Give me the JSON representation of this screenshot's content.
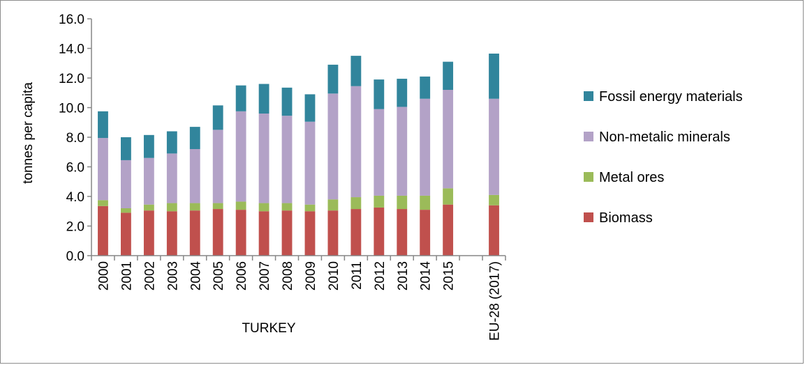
{
  "chart_data": {
    "type": "bar",
    "stacked": true,
    "ylabel": "tonnes per capita",
    "group_label": "TURKEY",
    "ylim": [
      0,
      16
    ],
    "ytick_step": 2,
    "ytick_labels": [
      "0.0",
      "2.0",
      "4.0",
      "6.0",
      "8.0",
      "10.0",
      "12.0",
      "14.0",
      "16.0"
    ],
    "grid": false,
    "legend_position": "right",
    "categories": [
      "2000",
      "2001",
      "2002",
      "2003",
      "2004",
      "2005",
      "2006",
      "2007",
      "2008",
      "2009",
      "2010",
      "2011",
      "2012",
      "2013",
      "2014",
      "2015",
      "",
      "EU-28 (2017)"
    ],
    "series": [
      {
        "name": "Biomass",
        "color": "#C0504D",
        "values": [
          3.35,
          2.9,
          3.05,
          3.0,
          3.05,
          3.15,
          3.1,
          3.0,
          3.05,
          3.0,
          3.05,
          3.15,
          3.25,
          3.15,
          3.1,
          3.45,
          null,
          3.4
        ]
      },
      {
        "name": "Metal ores",
        "color": "#9BBB59",
        "values": [
          0.4,
          0.3,
          0.4,
          0.55,
          0.5,
          0.4,
          0.55,
          0.55,
          0.5,
          0.45,
          0.75,
          0.8,
          0.8,
          0.9,
          0.95,
          1.1,
          null,
          0.7
        ]
      },
      {
        "name": "Non-metalic minerals",
        "color": "#B3A2C7",
        "values": [
          4.2,
          3.25,
          3.15,
          3.35,
          3.65,
          4.95,
          6.1,
          6.05,
          5.9,
          5.6,
          7.15,
          7.5,
          5.85,
          6.0,
          6.55,
          6.65,
          null,
          6.5
        ]
      },
      {
        "name": "Fossil energy materials",
        "color": "#31859C",
        "values": [
          1.8,
          1.55,
          1.55,
          1.5,
          1.5,
          1.65,
          1.75,
          2.0,
          1.9,
          1.85,
          1.95,
          2.05,
          2.0,
          1.9,
          1.5,
          1.9,
          null,
          3.05
        ]
      }
    ]
  }
}
